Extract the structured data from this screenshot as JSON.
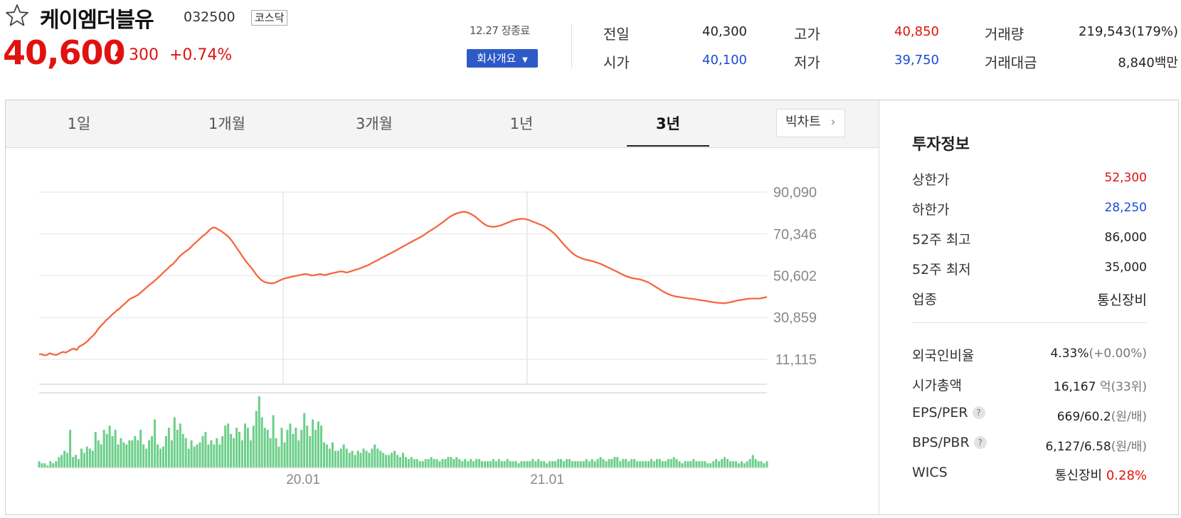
{
  "header": {
    "name": "케이엠더블유",
    "code": "032500",
    "market": "코스닥",
    "price": "40,600",
    "change_arrow": "▲",
    "change_abs": "300",
    "change_pct": "+0.74%",
    "status": "12.27 장종료",
    "company_button": "회사개요"
  },
  "quote": [
    {
      "label": "전일",
      "value": "40,300",
      "color": "black"
    },
    {
      "label": "시가",
      "value": "40,100",
      "color": "blue"
    },
    {
      "label": "고가",
      "value": "40,850",
      "color": "red"
    },
    {
      "label": "저가",
      "value": "39,750",
      "color": "blue"
    },
    {
      "label": "거래량",
      "value": "219,543(179%)",
      "color": "black"
    },
    {
      "label": "거래대금",
      "value": "8,840백만",
      "color": "black"
    }
  ],
  "tabs": {
    "t1": "1일",
    "t2": "1개월",
    "t3": "3개월",
    "t4": "1년",
    "t5": "3년",
    "active": "3년",
    "bigchart": "빅차트"
  },
  "investment": {
    "title": "투자정보",
    "upper_limit_label": "상한가",
    "upper_limit": "52,300",
    "lower_limit_label": "하한가",
    "lower_limit": "28,250",
    "high52_label": "52주 최고",
    "high52": "86,000",
    "low52_label": "52주 최저",
    "low52": "35,000",
    "sector_label": "업종",
    "sector": "통신장비",
    "foreign_label": "외국인비율",
    "foreign": "4.33%",
    "foreign_change": "(+0.00%)",
    "mcap_label": "시가총액",
    "mcap": "16,167",
    "mcap_unit": "억",
    "mcap_rank": "(33위)",
    "eps_label": "EPS/PER",
    "eps": "669/60.2",
    "eps_unit": "(원/배)",
    "bps_label": "BPS/PBR",
    "bps": "6,127/6.58",
    "bps_unit": "(원/배)",
    "wics_label": "WICS",
    "wics": "통신장비",
    "wics_pct": "0.28%"
  },
  "colors": {
    "up": "#e0120f",
    "down": "#1a4ad6",
    "line": "#f4673f",
    "volume": "#6ccf8a",
    "accent_button": "#2e5ac8"
  },
  "chart_data": {
    "type": "line",
    "y_ticks": [
      "90,090",
      "70,346",
      "50,602",
      "30,859",
      "11,115"
    ],
    "x_ticks": [
      "20.01",
      "21.01"
    ],
    "ylim": [
      11115,
      90090
    ],
    "price_series": [
      13500,
      13500,
      13000,
      13200,
      14000,
      13500,
      13200,
      13400,
      14200,
      14600,
      14300,
      15000,
      15800,
      16200,
      15500,
      17200,
      17800,
      18600,
      19600,
      21000,
      22100,
      23500,
      25300,
      26800,
      28100,
      29500,
      30600,
      31900,
      33000,
      34200,
      35000,
      36300,
      37400,
      38600,
      39700,
      40300,
      40900,
      41600,
      42700,
      43800,
      44900,
      46000,
      47000,
      48000,
      49200,
      50300,
      51600,
      52800,
      53900,
      55200,
      56100,
      57500,
      59000,
      60300,
      61400,
      62300,
      63200,
      64400,
      65700,
      66800,
      68000,
      69200,
      70100,
      71300,
      72600,
      73400,
      73200,
      72400,
      71700,
      70800,
      69800,
      68700,
      67100,
      65300,
      63400,
      61600,
      59700,
      57900,
      56300,
      54800,
      53200,
      51400,
      49900,
      48600,
      47800,
      47300,
      47100,
      47000,
      47200,
      47800,
      48400,
      49000,
      49400,
      49700,
      50000,
      50300,
      50500,
      50800,
      51000,
      51300,
      51400,
      51000,
      50700,
      50900,
      51100,
      51400,
      51100,
      50900,
      51300,
      51600,
      51900,
      52200,
      52500,
      52700,
      52400,
      52100,
      52500,
      52900,
      53300,
      53700,
      54100,
      54600,
      55100,
      55600,
      56300,
      57000,
      57600,
      58300,
      59000,
      59600,
      60300,
      61000,
      61600,
      62300,
      63000,
      63700,
      64400,
      65100,
      65800,
      66500,
      67200,
      67800,
      68500,
      69200,
      70000,
      70900,
      71700,
      72500,
      73300,
      74200,
      75100,
      76000,
      77000,
      78000,
      78800,
      79500,
      80000,
      80400,
      80700,
      80800,
      80500,
      80000,
      79300,
      78500,
      77400,
      76300,
      75300,
      74500,
      74000,
      73800,
      73700,
      73900,
      74200,
      74600,
      75100,
      75600,
      76100,
      76600,
      77000,
      77300,
      77500,
      77500,
      77300,
      76900,
      76400,
      75900,
      75400,
      74900,
      74400,
      73800,
      73000,
      72100,
      71100,
      69900,
      68500,
      67000,
      65500,
      64100,
      62800,
      61600,
      60600,
      59800,
      59200,
      58700,
      58300,
      58000,
      57700,
      57400,
      57000,
      56600,
      56100,
      55500,
      54900,
      54300,
      53700,
      53100,
      52500,
      51800,
      51200,
      50600,
      50100,
      49700,
      49400,
      49200,
      49000,
      48700,
      48300,
      47800,
      47200,
      46500,
      45700,
      44900,
      44100,
      43300,
      42600,
      42000,
      41500,
      41100,
      40800,
      40600,
      40400,
      40200,
      40000,
      39800,
      39700,
      39500,
      39300,
      39100,
      38900,
      38700,
      38500,
      38300,
      38100,
      37900,
      37800,
      37700,
      37600,
      37800,
      38000,
      38300,
      38600,
      38900,
      39100,
      39300,
      39500,
      39700,
      39800,
      39800,
      39800,
      39800,
      40000,
      40300,
      40600
    ],
    "volume_series": [
      3,
      2,
      2,
      1,
      3,
      2,
      3,
      5,
      6,
      8,
      7,
      18,
      5,
      6,
      4,
      9,
      7,
      10,
      9,
      8,
      17,
      13,
      11,
      18,
      16,
      20,
      15,
      18,
      11,
      14,
      12,
      11,
      13,
      13,
      15,
      13,
      18,
      11,
      9,
      13,
      15,
      23,
      11,
      9,
      10,
      15,
      19,
      13,
      24,
      18,
      21,
      16,
      14,
      9,
      13,
      10,
      11,
      12,
      15,
      17,
      11,
      13,
      11,
      14,
      11,
      15,
      20,
      21,
      16,
      14,
      19,
      17,
      13,
      21,
      19,
      13,
      20,
      27,
      34,
      24,
      19,
      18,
      14,
      25,
      14,
      10,
      19,
      12,
      18,
      21,
      16,
      19,
      13,
      18,
      26,
      20,
      15,
      23,
      18,
      22,
      20,
      12,
      11,
      9,
      12,
      8,
      8,
      9,
      11,
      9,
      7,
      8,
      6,
      8,
      7,
      9,
      8,
      7,
      9,
      11,
      9,
      8,
      7,
      6,
      6,
      7,
      8,
      6,
      5,
      7,
      5,
      4,
      5,
      4,
      4,
      3,
      3,
      4,
      4,
      5,
      4,
      4,
      3,
      4,
      4,
      5,
      5,
      4,
      5,
      4,
      3,
      4,
      3,
      4,
      3,
      4,
      4,
      3,
      3,
      3,
      3,
      4,
      3,
      4,
      3,
      3,
      4,
      3,
      3,
      3,
      2,
      3,
      3,
      3,
      3,
      4,
      3,
      4,
      3,
      3,
      2,
      3,
      3,
      3,
      4,
      4,
      3,
      4,
      4,
      3,
      3,
      3,
      3,
      3,
      4,
      3,
      4,
      3,
      4,
      5,
      4,
      3,
      4,
      4,
      5,
      5,
      3,
      4,
      4,
      3,
      4,
      4,
      3,
      3,
      3,
      3,
      3,
      4,
      3,
      4,
      4,
      3,
      3,
      4,
      4,
      5,
      4,
      3,
      2,
      3,
      3,
      3,
      4,
      3,
      3,
      3,
      3,
      2,
      2,
      3,
      4,
      3,
      4,
      5,
      4,
      3,
      3,
      3,
      2,
      3,
      2,
      3,
      4,
      6,
      4,
      3,
      3,
      2,
      3
    ]
  }
}
